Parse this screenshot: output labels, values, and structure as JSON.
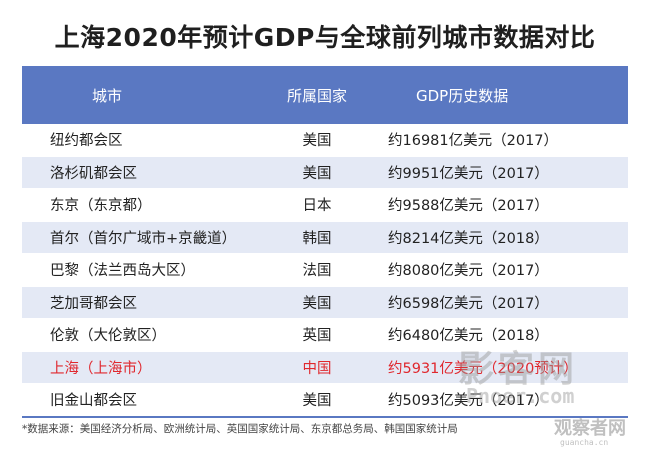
{
  "title": "上海2020年预计GDP与全球前列城市数据对比",
  "table": {
    "headers": {
      "city": "城市",
      "country": "所属国家",
      "gdp": "GDP历史数据"
    },
    "rows": [
      {
        "city": "纽约都会区",
        "country": "美国",
        "gdp": "约16981亿美元（2017）"
      },
      {
        "city": "洛杉矶都会区",
        "country": "美国",
        "gdp": "约9951亿美元（2017）"
      },
      {
        "city": "东京（东京都）",
        "country": "日本",
        "gdp": "约9588亿美元（2017）"
      },
      {
        "city": "首尔（首尔广域市+京畿道）",
        "country": "韩国",
        "gdp": "约8214亿美元（2018）"
      },
      {
        "city": "巴黎（法兰西岛大区）",
        "country": "法国",
        "gdp": "约8080亿美元（2017）"
      },
      {
        "city": "芝加哥都会区",
        "country": "美国",
        "gdp": "约6598亿美元（2017）"
      },
      {
        "city": "伦敦（大伦敦区）",
        "country": "英国",
        "gdp": "约6480亿美元（2018）"
      },
      {
        "city": "上海（上海市）",
        "country": "中国",
        "gdp": "约5931亿美元（2020预计）"
      },
      {
        "city": "旧金山都会区",
        "country": "美国",
        "gdp": "约5093亿美元（2017）"
      }
    ],
    "highlight_color": "#e0282e",
    "header_color": "#5a78c2",
    "stripe_color": "#e4e9f5"
  },
  "source": "*数据来源：美国经济分析局、欧洲统计局、英国国家统计局、东京都总务局、韩国国家统计局",
  "watermark": {
    "main": "影客网",
    "sub": "Pnoer.com",
    "corner_main": "观察者网",
    "corner_sub": "guancha.cn"
  }
}
